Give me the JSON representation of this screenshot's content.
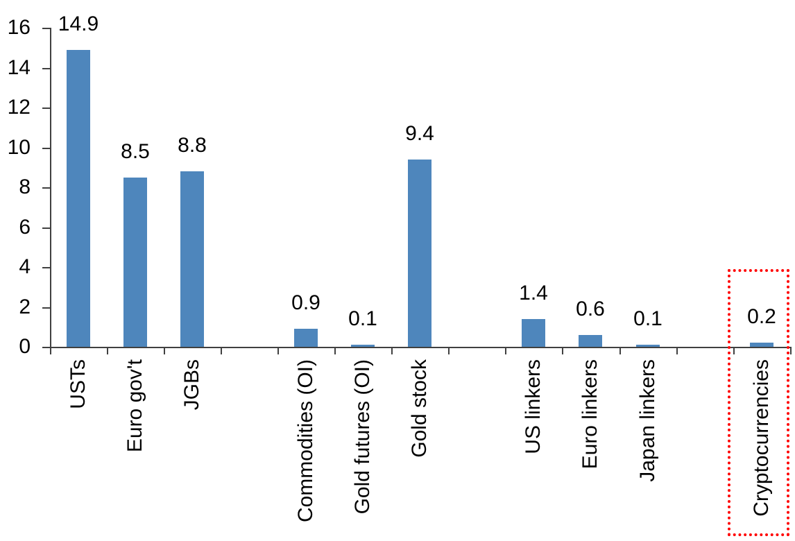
{
  "chart_data": {
    "type": "bar",
    "title": "",
    "xlabel": "",
    "ylabel": "",
    "categories": [
      "USTs",
      "Euro gov't",
      "JGBs",
      "Commodities (OI)",
      "Gold futures (OI)",
      "Gold stock",
      "US linkers",
      "Euro linkers",
      "Japan linkers",
      "Cryptocurrencies"
    ],
    "values": [
      14.9,
      8.5,
      8.8,
      0.9,
      0.1,
      9.4,
      1.4,
      0.6,
      0.1,
      0.2
    ],
    "data_labels": [
      "14.9",
      "8.5",
      "8.8",
      "0.9",
      "0.1",
      "9.4",
      "1.4",
      "0.6",
      "0.1",
      "0.2"
    ],
    "slots": [
      0,
      1,
      2,
      4,
      5,
      6,
      8,
      9,
      10,
      12
    ],
    "total_slots": 13,
    "ylim": [
      0,
      16
    ],
    "yticks": [
      0,
      2,
      4,
      6,
      8,
      10,
      12,
      14,
      16
    ],
    "grid": false,
    "legend": "none",
    "bar_color": "#4E86BC",
    "axis_color": "#404040",
    "text_color": "#000000",
    "highlight": {
      "category": "Cryptocurrencies",
      "box_color": "#FF0000",
      "style": "dotted-outline"
    }
  }
}
